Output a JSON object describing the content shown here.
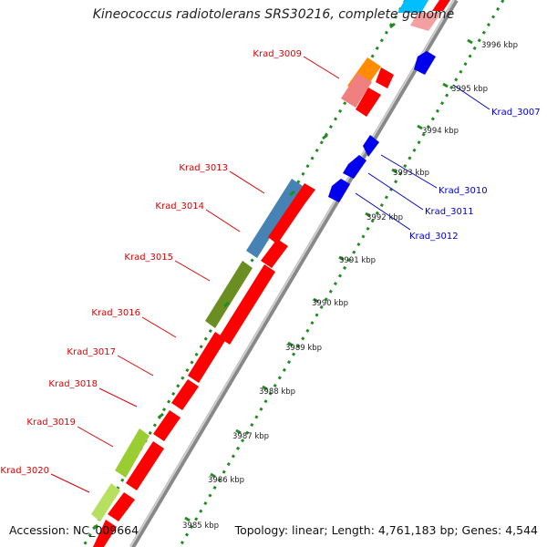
{
  "title": "Kineococcus radiotolerans SRS30216, complete genome",
  "accession": "Accession: NC_009664",
  "topology": "Topology: linear; Length: 4,761,183 bp; Genes: 4,544",
  "ruler_labels": [
    "3985 kbp",
    "3986 kbp",
    "3987 kbp",
    "3988 kbp",
    "3989 kbp",
    "3990 kbp",
    "3991 kbp",
    "3992 kbp",
    "3993 kbp",
    "3994 kbp",
    "3995 kbp",
    "3996 kbp"
  ],
  "left_labels": [
    "Krad_3009",
    "Krad_3013",
    "Krad_3014",
    "Krad_3015",
    "Krad_3016",
    "Krad_3017",
    "Krad_3018",
    "Krad_3019",
    "Krad_3020"
  ],
  "right_labels": [
    "Krad_3007",
    "Krad_3010",
    "Krad_3011",
    "Krad_3012"
  ],
  "colors": {
    "forward_gene": "#ff0000",
    "reverse_gene": "#0000ee",
    "left_label": "#dd0000",
    "right_label": "#0000cc",
    "track_dots": "#228b22",
    "backbone": "#999999",
    "blue_feature": "#4682b4",
    "olive_feature": "#6b8e23",
    "lime_feature": "#9acd32",
    "orange_feature": "#ff8c00",
    "pink_feature": "#f08080",
    "cyan_feature": "#00bfff"
  }
}
